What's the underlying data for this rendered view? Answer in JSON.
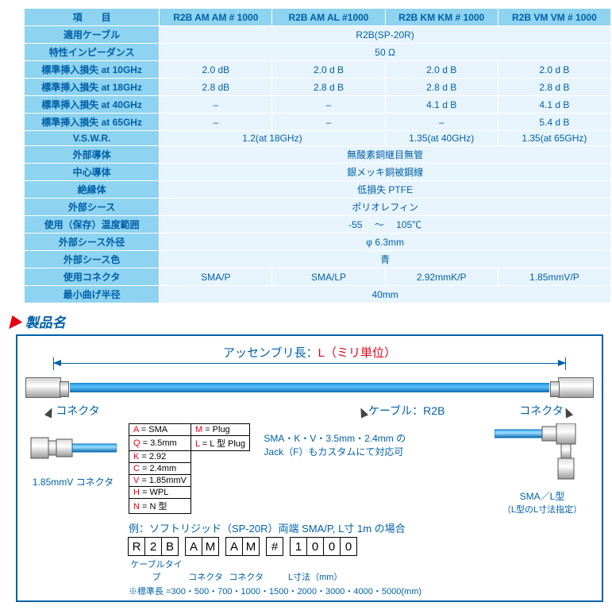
{
  "table": {
    "header": {
      "item": "項　　目",
      "cols": [
        "R2B AM AM # 1000",
        "R2B AM AL #1000",
        "R2B KM KM # 1000",
        "R2B VM VM # 1000"
      ]
    },
    "rows": [
      {
        "label": "適用ケーブル",
        "span": "R2B(SP-20R)"
      },
      {
        "label": "特性インピーダンス",
        "span": "50 Ω"
      },
      {
        "label": "標準挿入損失 at 10GHz",
        "cells": [
          "2.0 dB",
          "2.0 d B",
          "2.0 d B",
          "2.0 d B"
        ]
      },
      {
        "label": "標準挿入損失 at 18GHz",
        "cells": [
          "2.8 dB",
          "2.8 d B",
          "2.8 d B",
          "2.8 d B"
        ]
      },
      {
        "label": "標準挿入損失 at 40GHz",
        "cells": [
          "–",
          "–",
          "4.1 d B",
          "4.1 d B"
        ]
      },
      {
        "label": "標準挿入損失 at 65GHz",
        "cells": [
          "–",
          "–",
          "–",
          "5.4 d B"
        ]
      },
      {
        "label": "V.S.W.R.",
        "cells2": [
          "1.2(at 18GHz)",
          "1.35(at 40GHz)",
          "1.35(at 65GHz)"
        ]
      },
      {
        "label": "外部導体",
        "span": "無酸素銅継目無管"
      },
      {
        "label": "中心導体",
        "span": "銀メッキ銅被鋼線"
      },
      {
        "label": "絶縁体",
        "span": "低損失 PTFE"
      },
      {
        "label": "外部シース",
        "span": "ポリオレフィン"
      },
      {
        "label": "使用（保存）温度範囲",
        "span": "-55 　～　 105℃"
      },
      {
        "label": "外部シース外径",
        "span": "φ 6.3mm"
      },
      {
        "label": "外部シース色",
        "span": "青"
      },
      {
        "label": "使用コネクタ",
        "cells": [
          "SMA/P",
          "SMA/LP",
          "2.92mmK/P",
          "1.85mmV/P"
        ]
      },
      {
        "label": "最小曲げ半径",
        "span": "40mm"
      }
    ]
  },
  "section_title": "製品名",
  "diagram": {
    "assembly_prefix": "アッセンブリ長：",
    "assembly_highlight": "L（ミリ単位）",
    "connector_label": "コネクタ",
    "cable_label_prefix": "ケーブル：",
    "cable_label_value": "R2B",
    "left_conn_caption": "1.85mmV コネクタ",
    "right_conn_caption": "SMA／L型",
    "right_conn_sub": "（L型のL寸法指定）",
    "code_rows": [
      [
        "A = SMA",
        "M = Plug"
      ],
      [
        "Q = 3.5mm",
        "L = L 型 Plug"
      ],
      [
        "K = 2.92",
        ""
      ],
      [
        "C = 2.4mm",
        ""
      ],
      [
        "V = 1.85mmV",
        ""
      ],
      [
        "H = WPL",
        ""
      ],
      [
        "N = N 型",
        ""
      ]
    ],
    "note1": "SMA・K・V・3.5mm・2.4mm の",
    "note2": "Jack（F）もカスタムにて対応可",
    "example_label": "例：ソフトリジッド（SP-20R）両端 SMA/P, L寸 1m の場合",
    "pn": [
      "R",
      "2",
      "B",
      "",
      "A",
      "M",
      "",
      "A",
      "M",
      "",
      "#",
      "",
      "1",
      "0",
      "0",
      "0"
    ],
    "pn_under": [
      "ケーブルタイプ",
      "コネクタ",
      "コネクタ",
      "L寸法（mm）"
    ],
    "stdlen": "※標準長 =300・500・700・1000・1500・2000・3000・4000・5000(mm)"
  },
  "colors": {
    "header": "#8ed3f0",
    "body": "#e8f4fb",
    "text": "#0060a8",
    "red": "#e60012",
    "cable": "#1e9be8"
  }
}
